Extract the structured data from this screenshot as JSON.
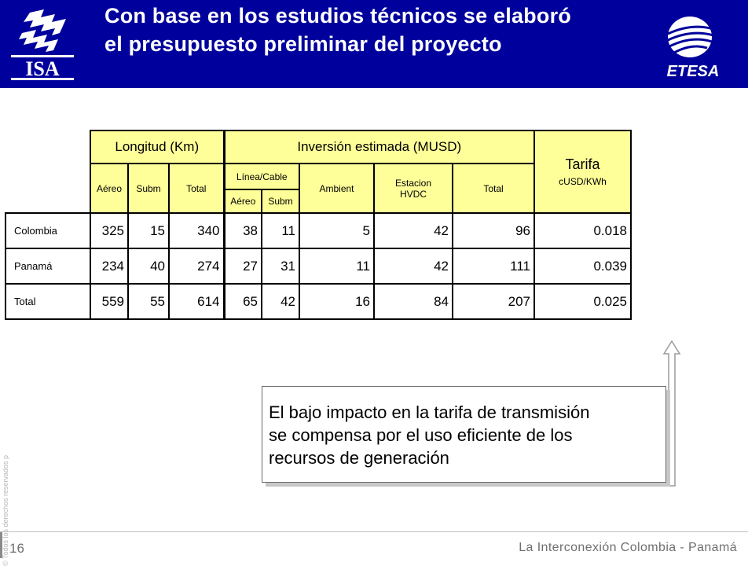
{
  "header": {
    "title": "Con base en los estudios técnicos se elaboró el presupuesto preliminar del proyecto",
    "left_logo_text": "ISA",
    "right_logo_text": "ETESA"
  },
  "side_text": "© Todos los derechos reservados p",
  "table": {
    "group_longitud": "Longitud (Km)",
    "group_inversion": "Inversión estimada (MUSD)",
    "tarifa_label": "Tarifa",
    "tarifa_unit": "cUSD/KWh",
    "long_cols": [
      "Aéreo",
      "Subm",
      "Total"
    ],
    "linea_label": "Línea/Cable",
    "linea_cols": [
      "Aéreo",
      "Subm"
    ],
    "ambient_label": "Ambient",
    "estacion_label": "Estacion HVDC",
    "inv_total_label": "Total",
    "rows": [
      {
        "label": "Colombia",
        "values": [
          "325",
          "15",
          "340",
          "38",
          "11",
          "5",
          "42",
          "96",
          "0.018"
        ]
      },
      {
        "label": "Panamá",
        "values": [
          "234",
          "40",
          "274",
          "27",
          "31",
          "11",
          "42",
          "111",
          "0.039"
        ]
      },
      {
        "label": "Total",
        "values": [
          "559",
          "55",
          "614",
          "65",
          "42",
          "16",
          "84",
          "207",
          "0.025"
        ]
      }
    ]
  },
  "callout": {
    "line1": "El bajo impacto en la tarifa de transmisión",
    "line2": "se compensa por el uso eficiente de los",
    "line3": "recursos de generación"
  },
  "footer": {
    "page_number": "16",
    "text": "La Interconexión Colombia - Panamá"
  },
  "colors": {
    "header_bg": "#00009c",
    "table_header_bg": "#ffff99"
  }
}
